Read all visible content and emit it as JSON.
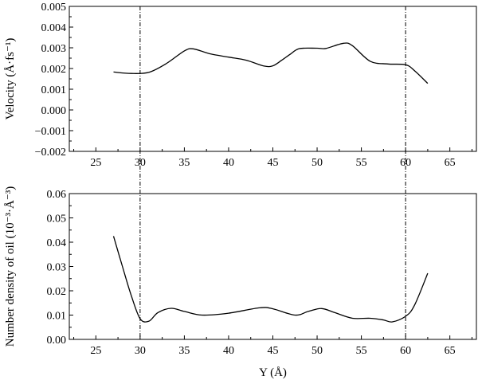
{
  "chart_data": [
    {
      "type": "line",
      "ylabel": "Velocity (Å·fs⁻¹)",
      "xlabel": "",
      "xlim": [
        22,
        68
      ],
      "ylim": [
        -0.002,
        0.005
      ],
      "x_ticks": [
        "25",
        "30",
        "35",
        "40",
        "45",
        "50",
        "55",
        "60",
        "65"
      ],
      "y_ticks": [
        "−0.002",
        "−0.001",
        "0.000",
        "0.001",
        "0.002",
        "0.003",
        "0.004",
        "0.005"
      ],
      "vertical_lines": [
        30,
        60
      ],
      "grid": false,
      "series": [
        {
          "x": [
            27,
            29,
            31,
            33,
            35,
            36,
            38,
            40,
            42,
            44,
            45,
            46,
            47,
            48,
            50,
            51,
            53,
            54,
            56,
            58,
            60,
            61,
            62.5
          ],
          "y": [
            0.00183,
            0.00176,
            0.00182,
            0.00225,
            0.00285,
            0.00295,
            0.0027,
            0.00255,
            0.0024,
            0.00212,
            0.00213,
            0.0024,
            0.0027,
            0.00296,
            0.00298,
            0.00297,
            0.00322,
            0.0031,
            0.00235,
            0.00222,
            0.00218,
            0.0019,
            0.00128
          ]
        }
      ]
    },
    {
      "type": "line",
      "ylabel": "Number density of oil (10⁻³·Å⁻³)",
      "xlabel": "Y (Å)",
      "xlim": [
        22,
        68
      ],
      "ylim": [
        0.0,
        0.06
      ],
      "x_ticks": [
        "25",
        "30",
        "35",
        "40",
        "45",
        "50",
        "55",
        "60",
        "65"
      ],
      "y_ticks": [
        "0.00",
        "0.01",
        "0.02",
        "0.03",
        "0.04",
        "0.05",
        "0.06"
      ],
      "vertical_lines": [
        30,
        60
      ],
      "grid": false,
      "series": [
        {
          "x": [
            27,
            28,
            29,
            30,
            31,
            32,
            33.5,
            35,
            37,
            40,
            43.5,
            45,
            47.5,
            49,
            50.5,
            52,
            54,
            56,
            57.5,
            58.5,
            60,
            61,
            62.5
          ],
          "y": [
            0.0425,
            0.03,
            0.018,
            0.0085,
            0.0075,
            0.011,
            0.0128,
            0.0115,
            0.01,
            0.0108,
            0.013,
            0.0126,
            0.01,
            0.0115,
            0.0127,
            0.011,
            0.0087,
            0.0087,
            0.008,
            0.0072,
            0.0095,
            0.014,
            0.0272
          ]
        }
      ]
    }
  ]
}
